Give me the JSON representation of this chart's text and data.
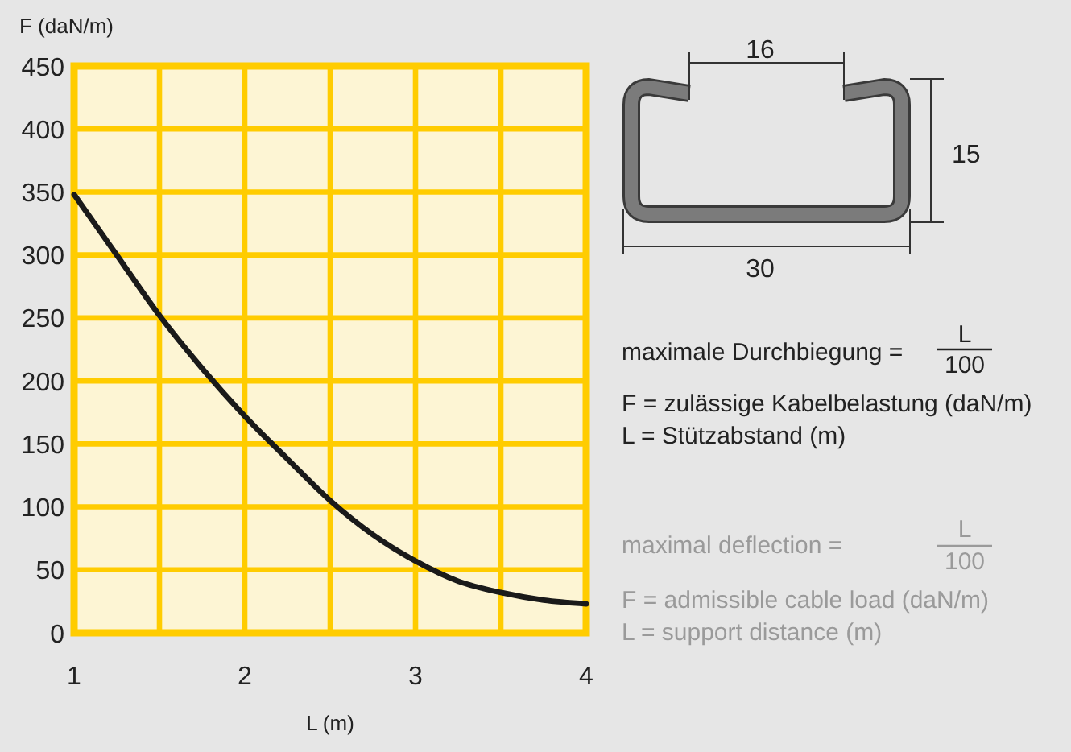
{
  "chart_data": {
    "type": "line",
    "xlabel": "L (m)",
    "ylabel": "F (daN/m)",
    "x": [
      1.0,
      1.25,
      1.5,
      1.75,
      2.0,
      2.25,
      2.5,
      2.75,
      3.0,
      3.25,
      3.5,
      3.75,
      4.0
    ],
    "series": [
      {
        "color": "#1a1a1a",
        "values": [
          348,
          300,
          252,
          210,
          172,
          138,
          105,
          78,
          57,
          41,
          32,
          26,
          23
        ]
      }
    ],
    "xlim": [
      1,
      4
    ],
    "ylim": [
      0,
      450
    ],
    "xticks": [
      1,
      {
        "value": 1.5,
        "label": null
      },
      2,
      {
        "value": 2.5,
        "label": null
      },
      3,
      {
        "value": 3.5,
        "label": null
      },
      4
    ],
    "yticks": [
      0,
      50,
      100,
      150,
      200,
      250,
      300,
      350,
      400,
      450
    ],
    "grid": true,
    "annotations": [
      "16",
      "15",
      "30",
      "maximale Durchbiegung =",
      "L",
      "100",
      "F = zulässige Kabelbelastung (daN/m)",
      "L = Stützabstand (m)",
      "maximal deflection =",
      "L",
      "100",
      "F = admissible cable load (daN/m)",
      "L = support distance (m)"
    ]
  }
}
